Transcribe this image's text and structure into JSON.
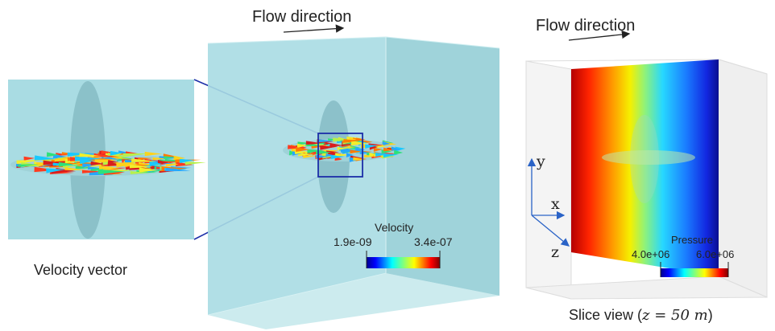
{
  "velocity_panel": {
    "flow_label": "Flow direction",
    "caption": "Velocity vector",
    "colorbar": {
      "title": "Velocity",
      "min_label": "1.9e-09",
      "max_label": "3.4e-07"
    }
  },
  "pressure_panel": {
    "flow_label": "Flow direction",
    "caption_text": "Slice view (",
    "caption_math": "z = 50 m",
    "caption_close": ")",
    "axes": {
      "y": "y",
      "x": "x",
      "z": "z"
    },
    "colorbar": {
      "title": "Pressure",
      "min_label": "4.0e+06",
      "max_label": "6.0e+06"
    }
  },
  "colors": {
    "domain_fill": "#a9dce3",
    "zoom_box": "#1c2ea8",
    "arrow": "#222222",
    "axis_arrow": "#2a63c7"
  }
}
